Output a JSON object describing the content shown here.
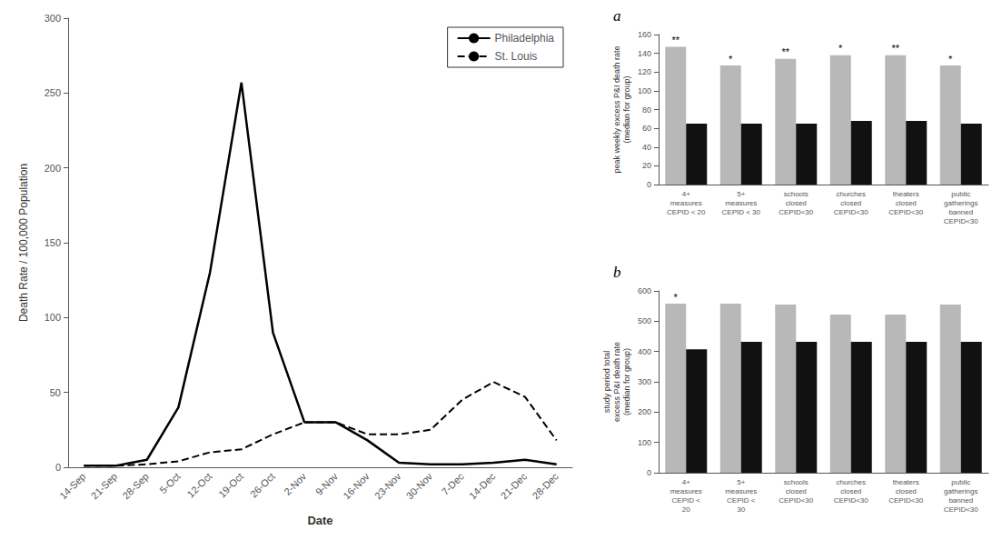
{
  "chart_data": [
    {
      "type": "line",
      "x_label": "Date",
      "y_label": "Death Rate / 100,000 Population",
      "categories": [
        "14-Sep",
        "21-Sep",
        "28-Sep",
        "5-Oct",
        "12-Oct",
        "19-Oct",
        "26-Oct",
        "2-Nov",
        "9-Nov",
        "16-Nov",
        "23-Nov",
        "30-Nov",
        "7-Dec",
        "14-Dec",
        "21-Dec",
        "28-Dec"
      ],
      "series": [
        {
          "name": "Philadelphia",
          "color": "black",
          "line_style": "solid",
          "values": [
            1,
            1,
            5,
            40,
            130,
            257,
            90,
            30,
            30,
            18,
            3,
            2,
            2,
            3,
            5,
            2
          ]
        },
        {
          "name": "St. Louis",
          "color": "black",
          "line_style": "dashed",
          "values": [
            1,
            1,
            2,
            4,
            10,
            12,
            22,
            30,
            30,
            22,
            22,
            25,
            45,
            57,
            47,
            18
          ]
        }
      ],
      "ylim": [
        0,
        300
      ],
      "yticks": [
        0,
        50,
        100,
        150,
        200,
        250,
        300
      ],
      "grid": false,
      "legend": "upper right"
    },
    {
      "type": "bar",
      "title": "a",
      "y_label": "peak weekly excess P&I death rate\n(median for group)",
      "categories": [
        "4+\nmeasures\nCEPID < 20",
        "5+\nmeasures\nCEPID < 30",
        "schools\nclosed\nCEPID<30",
        "churches\nclosed\nCEPID<30",
        "theaters\nclosed\nCEPID<30",
        "public\ngatherings\nbanned\nCEPID<30"
      ],
      "series": [
        {
          "color": "#b8b8b8",
          "values": [
            147,
            127,
            134,
            138,
            138,
            127
          ]
        },
        {
          "color": "#111111",
          "values": [
            65,
            65,
            65,
            68,
            68,
            65
          ]
        }
      ],
      "annotations": [
        {
          "category": "4+\nmeasures\nCEPID < 20",
          "text": "**"
        },
        {
          "category": "5+\nmeasures\nCEPID < 30",
          "text": "*"
        },
        {
          "category": "schools\nclosed\nCEPID<30",
          "text": "**"
        },
        {
          "category": "churches\nclosed\nCEPID<30",
          "text": "*"
        },
        {
          "category": "theaters\nclosed\nCEPID<30",
          "text": "**"
        },
        {
          "category": "public\ngatherings\nbanned\nCEPID<30",
          "text": "*"
        }
      ],
      "ylim": [
        0,
        160
      ],
      "yticks": [
        0,
        20,
        40,
        60,
        80,
        100,
        120,
        140,
        160
      ],
      "grid": false
    },
    {
      "type": "bar",
      "title": "b",
      "y_label": "study period total\nexcess P&I death rate\n(median for group)",
      "categories": [
        "4+\nmeasures\nCEPID <\n20",
        "5+\nmeasures\nCEPID <\n30",
        "schools\nclosed\nCEPID<30",
        "churches\nclosed\nCEPID<30",
        "theaters\nclosed\nCEPID<30",
        "public\ngatherings\nbanned\nCEPID<30"
      ],
      "series": [
        {
          "color": "#b8b8b8",
          "values": [
            558,
            558,
            555,
            522,
            522,
            555
          ]
        },
        {
          "color": "#111111",
          "values": [
            407,
            432,
            432,
            432,
            432,
            432
          ]
        }
      ],
      "annotations": [
        {
          "category": "4+\nmeasures\nCEPID <\n20",
          "text": "*"
        }
      ],
      "ylim": [
        0,
        600
      ],
      "yticks": [
        0,
        100,
        200,
        300,
        400,
        500,
        600
      ],
      "grid": false
    }
  ]
}
